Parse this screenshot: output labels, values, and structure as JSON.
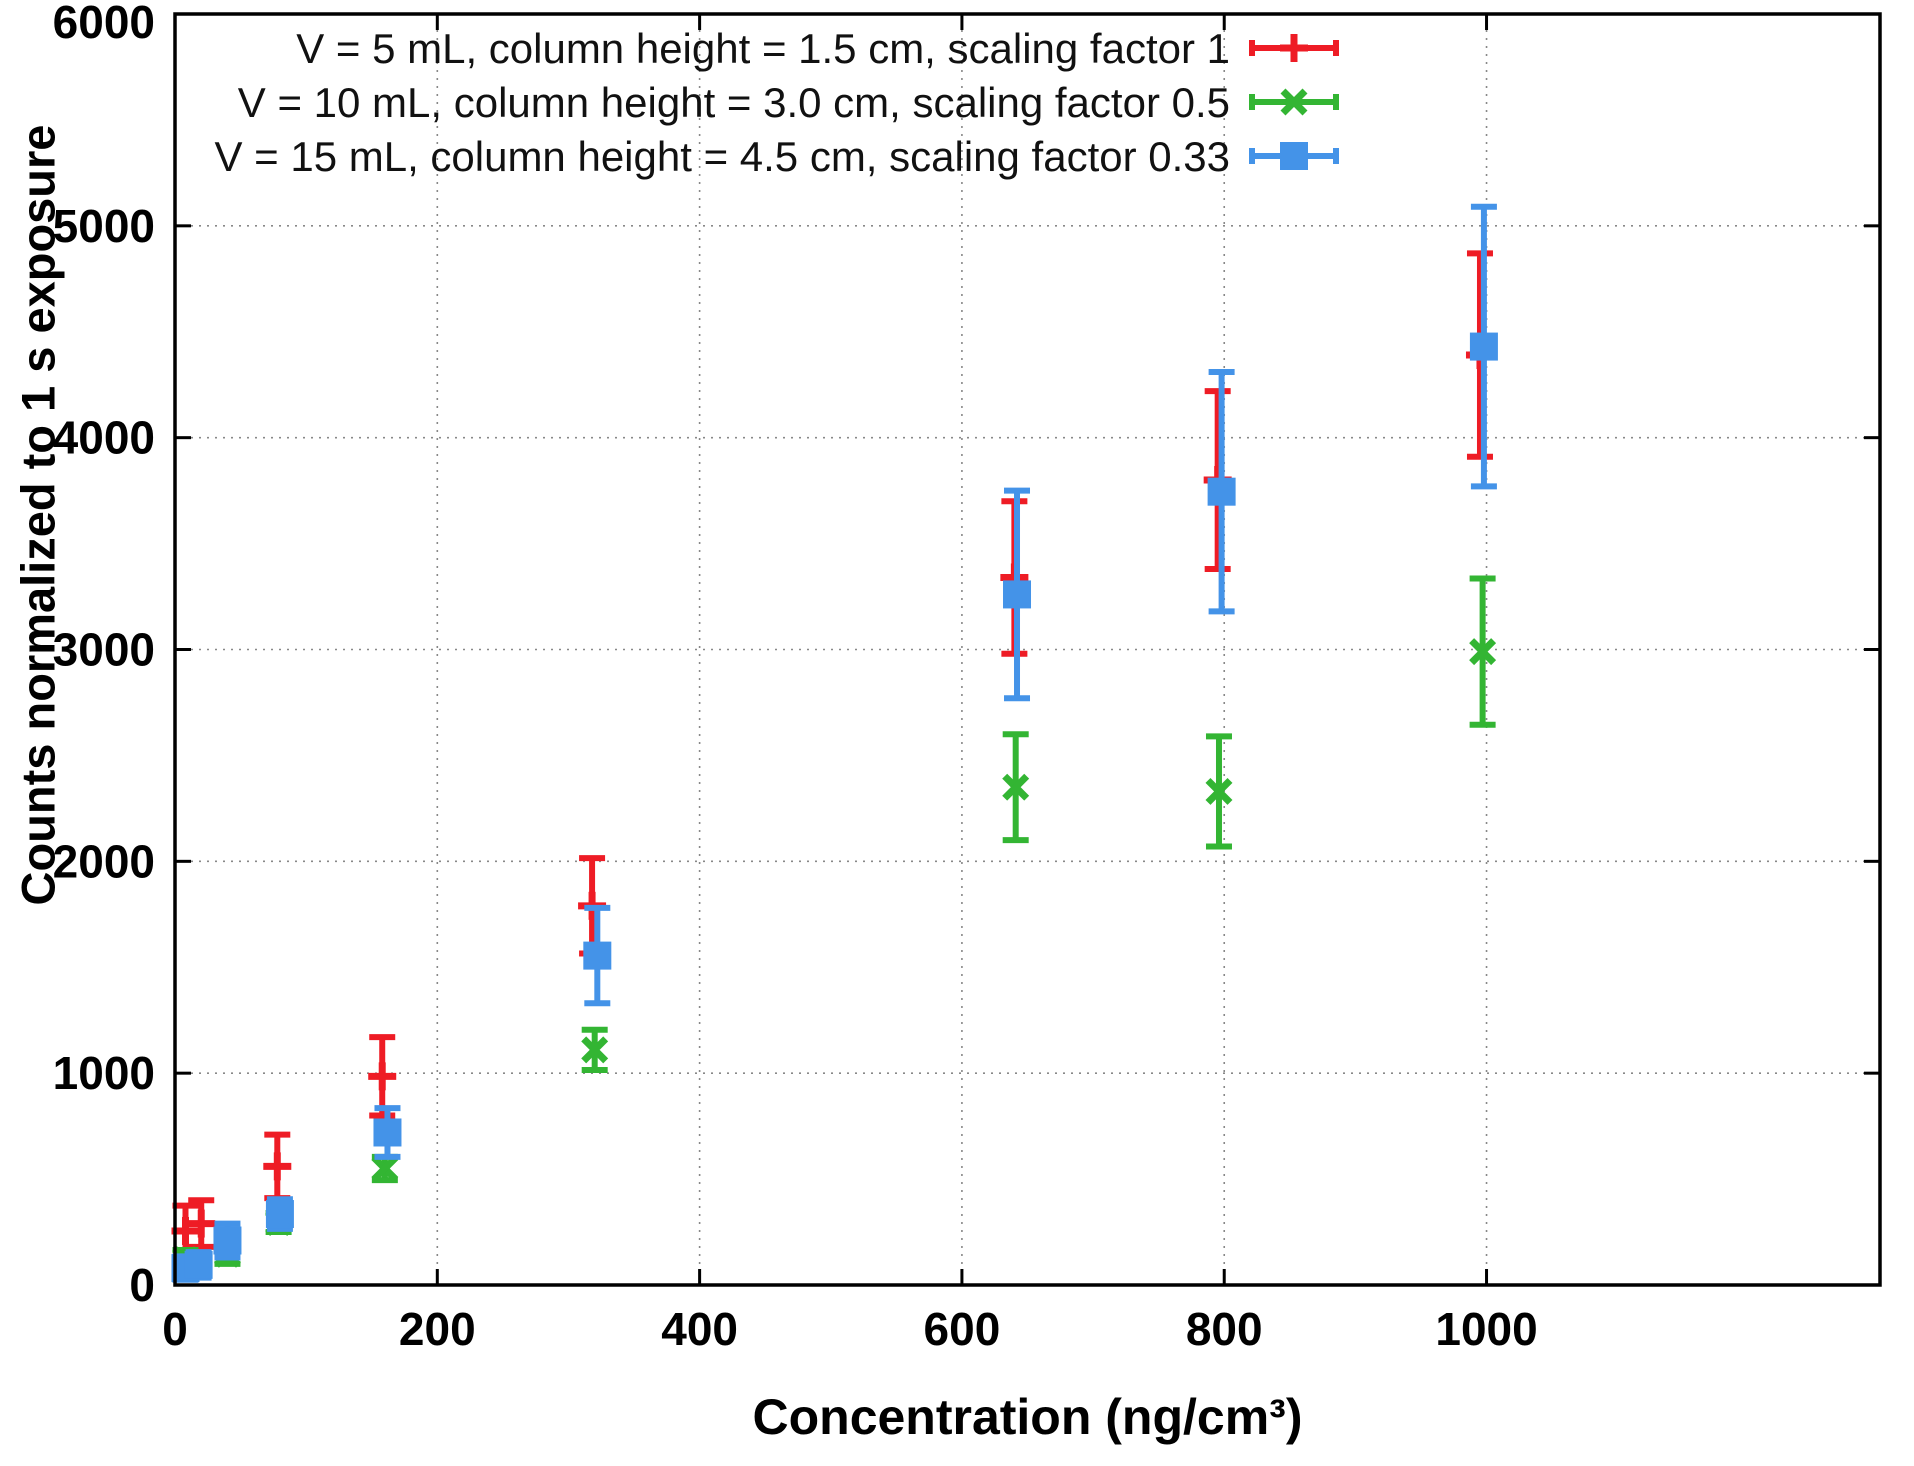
{
  "figure": {
    "background": "#ffffff",
    "axis_color": "#000000",
    "grid_color": "#888888"
  },
  "chart_data": {
    "type": "scatter",
    "title": "",
    "xlabel": "Concentration (ng/cm³)",
    "ylabel": "Counts normalized to 1 s exposure",
    "xlim": [
      0,
      1300
    ],
    "ylim": [
      0,
      6000
    ],
    "xticks": [
      0,
      200,
      400,
      600,
      800,
      1000
    ],
    "yticks": [
      0,
      1000,
      2000,
      3000,
      4000,
      5000,
      6000
    ],
    "grid": true,
    "legend_position": "top-inside-right-aligned-samples",
    "series": [
      {
        "name": "V = 5 mL, column height = 1.5 cm, scaling factor 1",
        "color": "#ee1c25",
        "marker": "plus",
        "points": [
          {
            "x": 8,
            "y": 255,
            "err": 120
          },
          {
            "x": 20,
            "y": 290,
            "err": 110
          },
          {
            "x": 78,
            "y": 560,
            "err": 150
          },
          {
            "x": 158,
            "y": 985,
            "err": 185
          },
          {
            "x": 318,
            "y": 1790,
            "err": 225
          },
          {
            "x": 640,
            "y": 3340,
            "err": 360
          },
          {
            "x": 795,
            "y": 3800,
            "err": 420
          },
          {
            "x": 995,
            "y": 4390,
            "err": 480
          }
        ]
      },
      {
        "name": "V = 10 mL, column height = 3.0 cm, scaling factor 0.5",
        "color": "#33b533",
        "marker": "cross",
        "points": [
          {
            "x": 8,
            "y": 120,
            "err": 45
          },
          {
            "x": 40,
            "y": 145,
            "err": 45
          },
          {
            "x": 79,
            "y": 295,
            "err": 45
          },
          {
            "x": 160,
            "y": 550,
            "err": 55
          },
          {
            "x": 320,
            "y": 1110,
            "err": 95
          },
          {
            "x": 641,
            "y": 2350,
            "err": 250
          },
          {
            "x": 796,
            "y": 2330,
            "err": 260
          },
          {
            "x": 997,
            "y": 2990,
            "err": 345
          }
        ]
      },
      {
        "name": "V = 15 mL, column height = 4.5 cm, scaling factor 0.33",
        "color": "#4493e8",
        "marker": "square",
        "points": [
          {
            "x": 8,
            "y": 80,
            "err": 55
          },
          {
            "x": 18,
            "y": 95,
            "err": 60
          },
          {
            "x": 40,
            "y": 210,
            "err": 80
          },
          {
            "x": 80,
            "y": 335,
            "err": 70
          },
          {
            "x": 162,
            "y": 720,
            "err": 115
          },
          {
            "x": 322,
            "y": 1555,
            "err": 225
          },
          {
            "x": 642,
            "y": 3260,
            "err": 490
          },
          {
            "x": 798,
            "y": 3745,
            "err": 565
          },
          {
            "x": 998,
            "y": 4430,
            "err": 660
          }
        ]
      }
    ]
  }
}
